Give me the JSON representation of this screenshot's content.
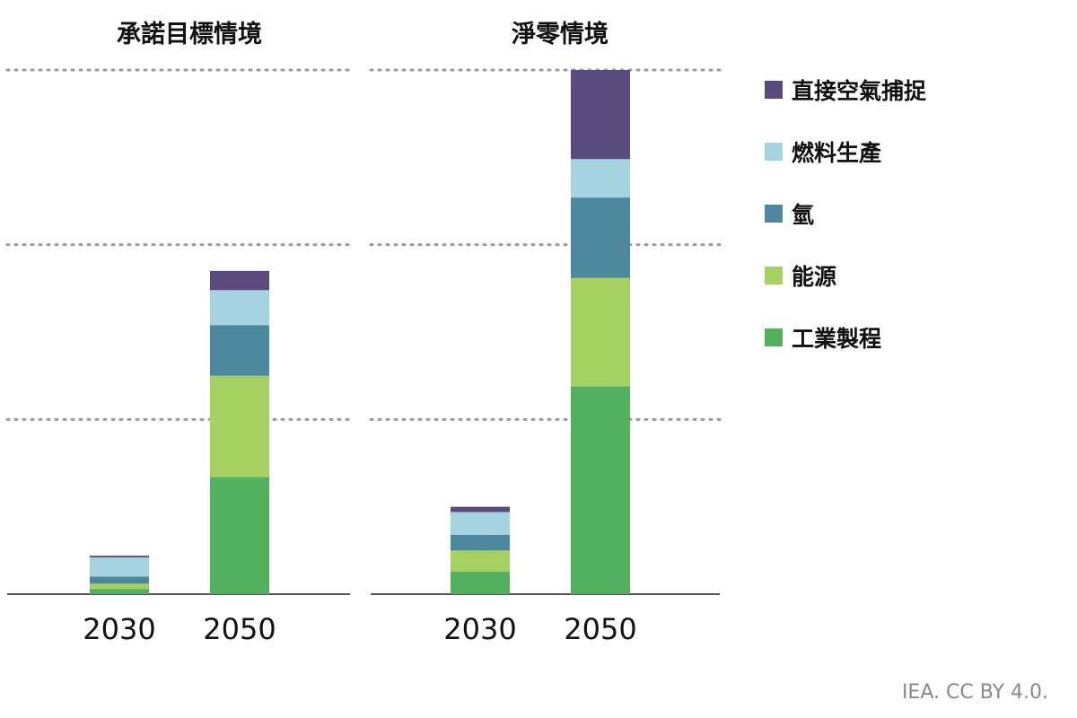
{
  "chart_data": {
    "type": "bar",
    "stacked": true,
    "ylim": [
      0,
      3
    ],
    "grid": true,
    "legend_position": "right",
    "series_meta": [
      {
        "name": "工業製程",
        "color": "#52b05e"
      },
      {
        "name": "能源",
        "color": "#a5d162"
      },
      {
        "name": "氫",
        "color": "#4b889e"
      },
      {
        "name": "燃料生產",
        "color": "#a6d3e0"
      },
      {
        "name": "直接空氣捕捉",
        "color": "#5b4a7c"
      }
    ],
    "panels": [
      {
        "title": "承諾目標情境",
        "categories": [
          "2030",
          "2050"
        ],
        "series": [
          {
            "name": "工業製程",
            "values": [
              0.03,
              0.67
            ]
          },
          {
            "name": "能源",
            "values": [
              0.03,
              0.58
            ]
          },
          {
            "name": "氫",
            "values": [
              0.04,
              0.29
            ]
          },
          {
            "name": "燃料生產",
            "values": [
              0.11,
              0.2
            ]
          },
          {
            "name": "直接空氣捕捉",
            "values": [
              0.01,
              0.11
            ]
          }
        ]
      },
      {
        "title": "淨零情境",
        "categories": [
          "2030",
          "2050"
        ],
        "series": [
          {
            "name": "工業製程",
            "values": [
              0.13,
              1.19
            ]
          },
          {
            "name": "能源",
            "values": [
              0.12,
              0.62
            ]
          },
          {
            "name": "氫",
            "values": [
              0.09,
              0.46
            ]
          },
          {
            "name": "燃料生產",
            "values": [
              0.13,
              0.22
            ]
          },
          {
            "name": "直接空氣捕捉",
            "values": [
              0.03,
              0.51
            ]
          }
        ]
      }
    ],
    "legend": [
      "直接空氣捕捉",
      "燃料生產",
      "氫",
      "能源",
      "工業製程"
    ]
  },
  "credit": "IEA. CC BY 4.0."
}
